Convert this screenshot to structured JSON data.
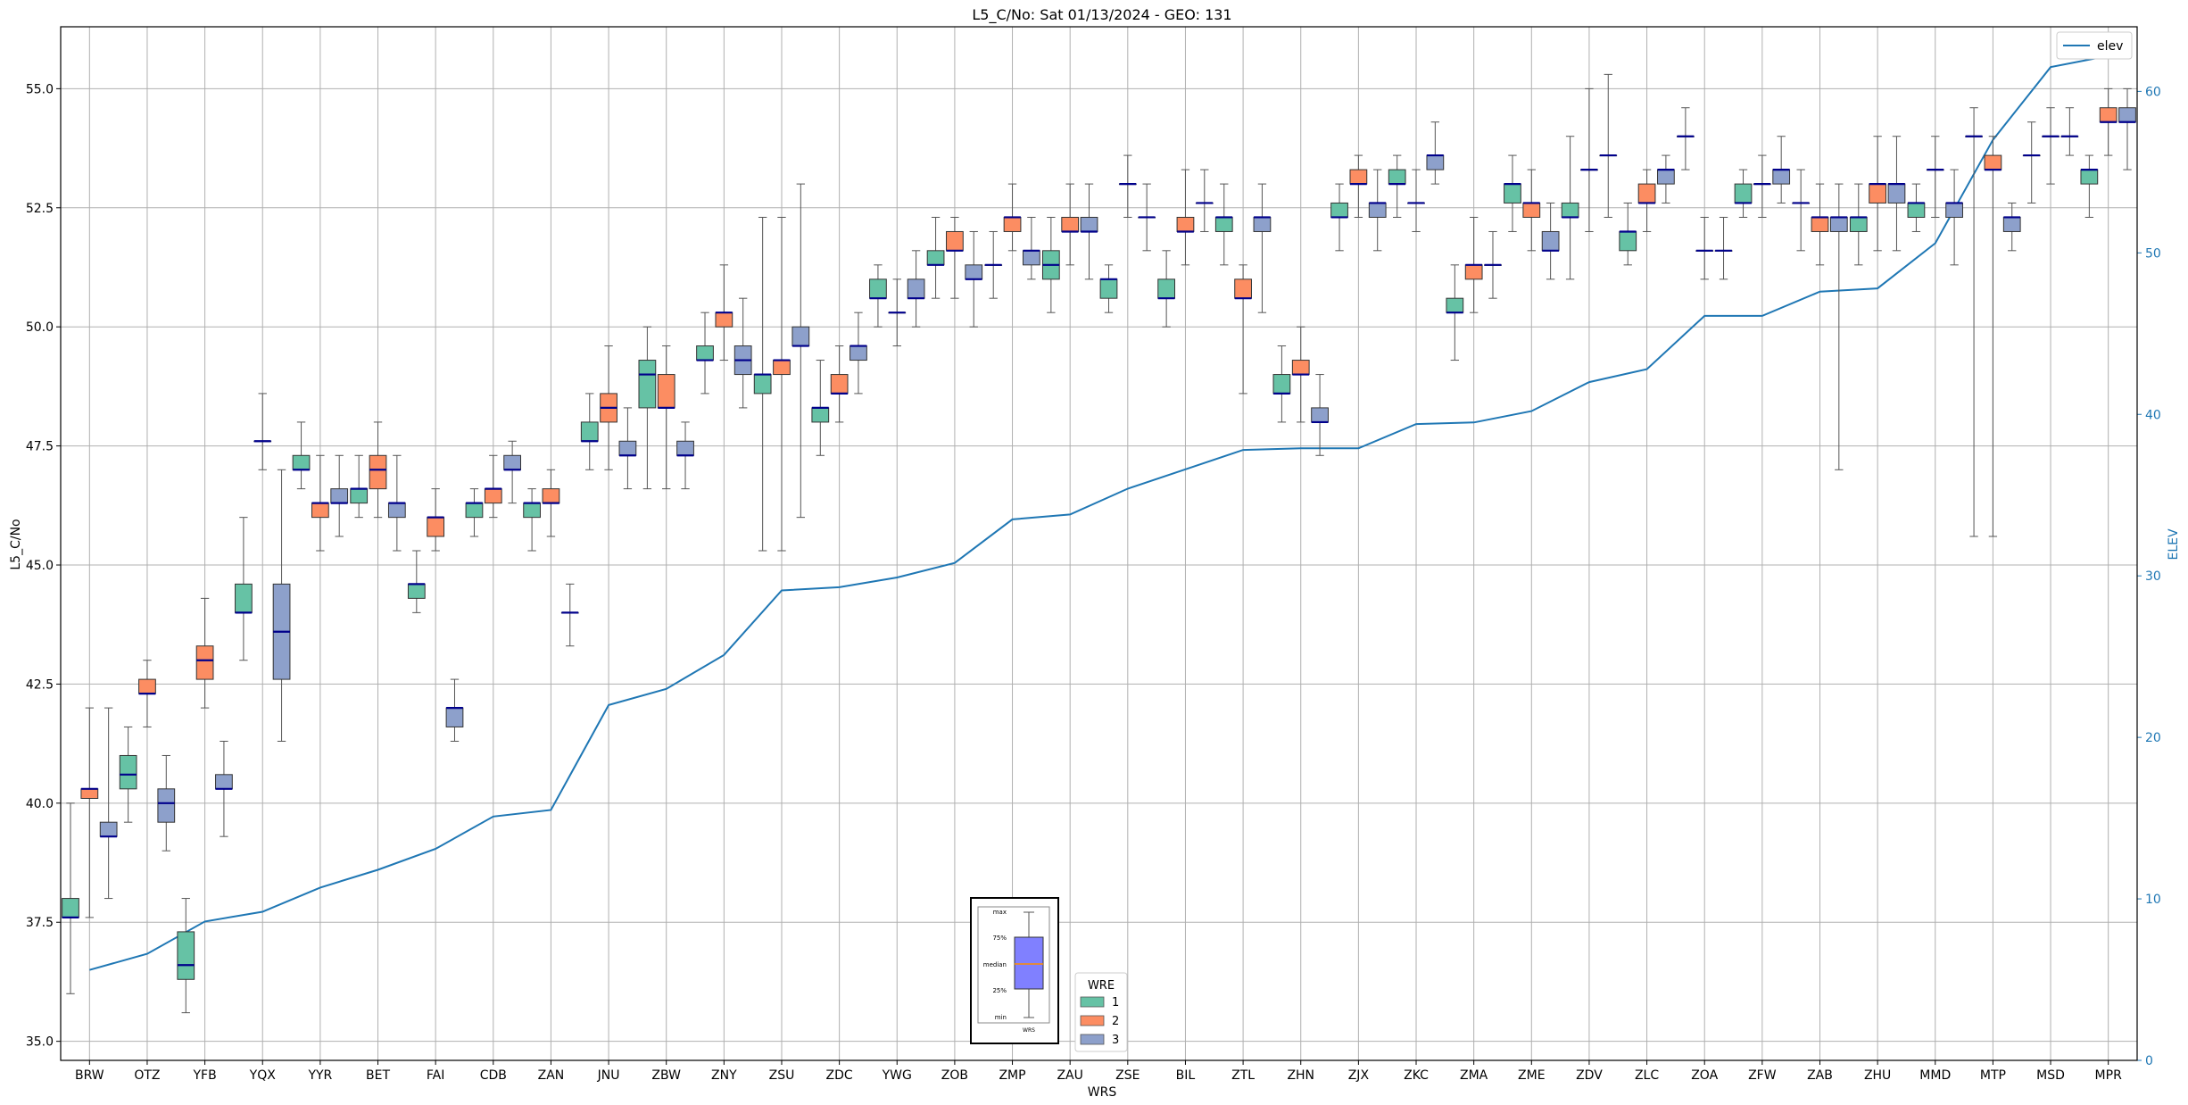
{
  "chart_data": {
    "type": "box",
    "title": "L5_C/No: Sat 01/13/2024 - GEO: 131",
    "xlabel": "WRS",
    "ylabel": "L5_C/No",
    "y2label": "ELEV",
    "ylim": [
      34.6,
      56.3
    ],
    "y2lim": [
      0,
      64
    ],
    "yticks": [
      "35.0",
      "37.5",
      "40.0",
      "42.5",
      "45.0",
      "47.5",
      "50.0",
      "52.5",
      "55.0"
    ],
    "y2ticks": [
      "0",
      "10",
      "20",
      "30",
      "40",
      "50",
      "60"
    ],
    "grid": true,
    "categories": [
      "BRW",
      "OTZ",
      "YFB",
      "YQX",
      "YYR",
      "BET",
      "FAI",
      "CDB",
      "ZAN",
      "JNU",
      "ZBW",
      "ZNY",
      "ZSU",
      "ZDC",
      "YWG",
      "ZOB",
      "ZMP",
      "ZAU",
      "ZSE",
      "BIL",
      "ZTL",
      "ZHN",
      "ZJX",
      "ZKC",
      "ZMA",
      "ZME",
      "ZDV",
      "ZLC",
      "ZOA",
      "ZFW",
      "ZAB",
      "ZHU",
      "MMD",
      "MTP",
      "MSD",
      "MPR"
    ],
    "series_colors": {
      "1": "#66c2a5",
      "2": "#fc8d62",
      "3": "#8da0cb"
    },
    "median_color": "#00008b",
    "boxes": [
      {
        "cat": "BRW",
        "wre": 1,
        "min": 36.0,
        "q1": 37.6,
        "med": 37.6,
        "q3": 38.0,
        "max": 40.0
      },
      {
        "cat": "BRW",
        "wre": 2,
        "min": 37.6,
        "q1": 40.1,
        "med": 40.3,
        "q3": 40.3,
        "max": 42.0
      },
      {
        "cat": "BRW",
        "wre": 3,
        "min": 38.0,
        "q1": 39.3,
        "med": 39.3,
        "q3": 39.6,
        "max": 42.0
      },
      {
        "cat": "OTZ",
        "wre": 1,
        "min": 39.6,
        "q1": 40.3,
        "med": 40.6,
        "q3": 41.0,
        "max": 41.6
      },
      {
        "cat": "OTZ",
        "wre": 2,
        "min": 41.6,
        "q1": 42.3,
        "med": 42.3,
        "q3": 42.6,
        "max": 43.0
      },
      {
        "cat": "OTZ",
        "wre": 3,
        "min": 39.0,
        "q1": 39.6,
        "med": 40.0,
        "q3": 40.3,
        "max": 41.0
      },
      {
        "cat": "YFB",
        "wre": 1,
        "min": 35.6,
        "q1": 36.3,
        "med": 36.6,
        "q3": 37.3,
        "max": 38.0
      },
      {
        "cat": "YFB",
        "wre": 2,
        "min": 42.0,
        "q1": 42.6,
        "med": 43.0,
        "q3": 43.3,
        "max": 44.3
      },
      {
        "cat": "YFB",
        "wre": 3,
        "min": 39.3,
        "q1": 40.3,
        "med": 40.3,
        "q3": 40.6,
        "max": 41.3
      },
      {
        "cat": "YQX",
        "wre": 1,
        "min": 43.0,
        "q1": 44.0,
        "med": 44.0,
        "q3": 44.6,
        "max": 46.0
      },
      {
        "cat": "YQX",
        "wre": 2,
        "min": 47.0,
        "q1": 47.6,
        "med": 47.6,
        "q3": 47.6,
        "max": 48.6
      },
      {
        "cat": "YQX",
        "wre": 3,
        "min": 41.3,
        "q1": 42.6,
        "med": 43.6,
        "q3": 44.6,
        "max": 47.0
      },
      {
        "cat": "YYR",
        "wre": 1,
        "min": 46.6,
        "q1": 47.0,
        "med": 47.0,
        "q3": 47.3,
        "max": 48.0
      },
      {
        "cat": "YYR",
        "wre": 2,
        "min": 45.3,
        "q1": 46.0,
        "med": 46.3,
        "q3": 46.3,
        "max": 47.3
      },
      {
        "cat": "YYR",
        "wre": 3,
        "min": 45.6,
        "q1": 46.3,
        "med": 46.3,
        "q3": 46.6,
        "max": 47.3
      },
      {
        "cat": "BET",
        "wre": 1,
        "min": 46.0,
        "q1": 46.3,
        "med": 46.6,
        "q3": 46.6,
        "max": 47.3
      },
      {
        "cat": "BET",
        "wre": 2,
        "min": 46.0,
        "q1": 46.6,
        "med": 47.0,
        "q3": 47.3,
        "max": 48.0
      },
      {
        "cat": "BET",
        "wre": 3,
        "min": 45.3,
        "q1": 46.0,
        "med": 46.3,
        "q3": 46.3,
        "max": 47.3
      },
      {
        "cat": "FAI",
        "wre": 1,
        "min": 44.0,
        "q1": 44.3,
        "med": 44.6,
        "q3": 44.6,
        "max": 45.3
      },
      {
        "cat": "FAI",
        "wre": 2,
        "min": 45.3,
        "q1": 45.6,
        "med": 46.0,
        "q3": 46.0,
        "max": 46.6
      },
      {
        "cat": "FAI",
        "wre": 3,
        "min": 41.3,
        "q1": 41.6,
        "med": 42.0,
        "q3": 42.0,
        "max": 42.6
      },
      {
        "cat": "CDB",
        "wre": 1,
        "min": 45.6,
        "q1": 46.0,
        "med": 46.3,
        "q3": 46.3,
        "max": 46.6
      },
      {
        "cat": "CDB",
        "wre": 2,
        "min": 46.0,
        "q1": 46.3,
        "med": 46.6,
        "q3": 46.6,
        "max": 47.3
      },
      {
        "cat": "CDB",
        "wre": 3,
        "min": 46.3,
        "q1": 47.0,
        "med": 47.0,
        "q3": 47.3,
        "max": 47.6
      },
      {
        "cat": "ZAN",
        "wre": 1,
        "min": 45.3,
        "q1": 46.0,
        "med": 46.3,
        "q3": 46.3,
        "max": 46.6
      },
      {
        "cat": "ZAN",
        "wre": 2,
        "min": 45.6,
        "q1": 46.3,
        "med": 46.3,
        "q3": 46.6,
        "max": 47.0
      },
      {
        "cat": "ZAN",
        "wre": 3,
        "min": 43.3,
        "q1": 44.0,
        "med": 44.0,
        "q3": 44.0,
        "max": 44.6
      },
      {
        "cat": "JNU",
        "wre": 1,
        "min": 47.0,
        "q1": 47.6,
        "med": 47.6,
        "q3": 48.0,
        "max": 48.6
      },
      {
        "cat": "JNU",
        "wre": 2,
        "min": 47.0,
        "q1": 48.0,
        "med": 48.3,
        "q3": 48.6,
        "max": 49.6
      },
      {
        "cat": "JNU",
        "wre": 3,
        "min": 46.6,
        "q1": 47.3,
        "med": 47.3,
        "q3": 47.6,
        "max": 48.3
      },
      {
        "cat": "ZBW",
        "wre": 1,
        "min": 46.6,
        "q1": 48.3,
        "med": 49.0,
        "q3": 49.3,
        "max": 50.0
      },
      {
        "cat": "ZBW",
        "wre": 2,
        "min": 46.6,
        "q1": 48.3,
        "med": 48.3,
        "q3": 49.0,
        "max": 49.6
      },
      {
        "cat": "ZBW",
        "wre": 3,
        "min": 46.6,
        "q1": 47.3,
        "med": 47.3,
        "q3": 47.6,
        "max": 48.0
      },
      {
        "cat": "ZNY",
        "wre": 1,
        "min": 48.6,
        "q1": 49.3,
        "med": 49.3,
        "q3": 49.6,
        "max": 50.3
      },
      {
        "cat": "ZNY",
        "wre": 2,
        "min": 49.3,
        "q1": 50.0,
        "med": 50.3,
        "q3": 50.3,
        "max": 51.3
      },
      {
        "cat": "ZNY",
        "wre": 3,
        "min": 48.3,
        "q1": 49.0,
        "med": 49.3,
        "q3": 49.6,
        "max": 50.6
      },
      {
        "cat": "ZSU",
        "wre": 1,
        "min": 45.3,
        "q1": 48.6,
        "med": 49.0,
        "q3": 49.0,
        "max": 52.3
      },
      {
        "cat": "ZSU",
        "wre": 2,
        "min": 45.3,
        "q1": 49.0,
        "med": 49.3,
        "q3": 49.3,
        "max": 52.3
      },
      {
        "cat": "ZSU",
        "wre": 3,
        "min": 46.0,
        "q1": 49.6,
        "med": 49.6,
        "q3": 50.0,
        "max": 53.0
      },
      {
        "cat": "ZDC",
        "wre": 1,
        "min": 47.3,
        "q1": 48.0,
        "med": 48.3,
        "q3": 48.3,
        "max": 49.3
      },
      {
        "cat": "ZDC",
        "wre": 2,
        "min": 48.0,
        "q1": 48.6,
        "med": 48.6,
        "q3": 49.0,
        "max": 49.6
      },
      {
        "cat": "ZDC",
        "wre": 3,
        "min": 48.6,
        "q1": 49.3,
        "med": 49.6,
        "q3": 49.6,
        "max": 50.3
      },
      {
        "cat": "YWG",
        "wre": 1,
        "min": 50.0,
        "q1": 50.6,
        "med": 50.6,
        "q3": 51.0,
        "max": 51.3
      },
      {
        "cat": "YWG",
        "wre": 2,
        "min": 49.6,
        "q1": 50.3,
        "med": 50.3,
        "q3": 50.3,
        "max": 51.0
      },
      {
        "cat": "YWG",
        "wre": 3,
        "min": 50.0,
        "q1": 50.6,
        "med": 50.6,
        "q3": 51.0,
        "max": 51.6
      },
      {
        "cat": "ZOB",
        "wre": 1,
        "min": 50.6,
        "q1": 51.3,
        "med": 51.3,
        "q3": 51.6,
        "max": 52.3
      },
      {
        "cat": "ZOB",
        "wre": 2,
        "min": 50.6,
        "q1": 51.6,
        "med": 51.6,
        "q3": 52.0,
        "max": 52.3
      },
      {
        "cat": "ZOB",
        "wre": 3,
        "min": 50.0,
        "q1": 51.0,
        "med": 51.0,
        "q3": 51.3,
        "max": 52.0
      },
      {
        "cat": "ZMP",
        "wre": 1,
        "min": 50.6,
        "q1": 51.3,
        "med": 51.3,
        "q3": 51.3,
        "max": 52.0
      },
      {
        "cat": "ZMP",
        "wre": 2,
        "min": 51.6,
        "q1": 52.0,
        "med": 52.3,
        "q3": 52.3,
        "max": 53.0
      },
      {
        "cat": "ZMP",
        "wre": 3,
        "min": 51.0,
        "q1": 51.3,
        "med": 51.6,
        "q3": 51.6,
        "max": 52.3
      },
      {
        "cat": "ZAU",
        "wre": 1,
        "min": 50.3,
        "q1": 51.0,
        "med": 51.3,
        "q3": 51.6,
        "max": 52.3
      },
      {
        "cat": "ZAU",
        "wre": 2,
        "min": 51.3,
        "q1": 52.0,
        "med": 52.0,
        "q3": 52.3,
        "max": 53.0
      },
      {
        "cat": "ZAU",
        "wre": 3,
        "min": 51.0,
        "q1": 52.0,
        "med": 52.0,
        "q3": 52.3,
        "max": 53.0
      },
      {
        "cat": "ZSE",
        "wre": 1,
        "min": 50.3,
        "q1": 50.6,
        "med": 51.0,
        "q3": 51.0,
        "max": 51.3
      },
      {
        "cat": "ZSE",
        "wre": 2,
        "min": 52.3,
        "q1": 53.0,
        "med": 53.0,
        "q3": 53.0,
        "max": 53.6
      },
      {
        "cat": "ZSE",
        "wre": 3,
        "min": 51.6,
        "q1": 52.3,
        "med": 52.3,
        "q3": 52.3,
        "max": 53.0
      },
      {
        "cat": "BIL",
        "wre": 1,
        "min": 50.0,
        "q1": 50.6,
        "med": 50.6,
        "q3": 51.0,
        "max": 51.6
      },
      {
        "cat": "BIL",
        "wre": 2,
        "min": 51.3,
        "q1": 52.0,
        "med": 52.0,
        "q3": 52.3,
        "max": 53.3
      },
      {
        "cat": "BIL",
        "wre": 3,
        "min": 52.0,
        "q1": 52.6,
        "med": 52.6,
        "q3": 52.6,
        "max": 53.3
      },
      {
        "cat": "ZTL",
        "wre": 1,
        "min": 51.3,
        "q1": 52.0,
        "med": 52.3,
        "q3": 52.3,
        "max": 53.0
      },
      {
        "cat": "ZTL",
        "wre": 2,
        "min": 48.6,
        "q1": 50.6,
        "med": 50.6,
        "q3": 51.0,
        "max": 51.3
      },
      {
        "cat": "ZTL",
        "wre": 3,
        "min": 50.3,
        "q1": 52.0,
        "med": 52.3,
        "q3": 52.3,
        "max": 53.0
      },
      {
        "cat": "ZHN",
        "wre": 1,
        "min": 48.0,
        "q1": 48.6,
        "med": 48.6,
        "q3": 49.0,
        "max": 49.6
      },
      {
        "cat": "ZHN",
        "wre": 2,
        "min": 48.0,
        "q1": 49.0,
        "med": 49.0,
        "q3": 49.3,
        "max": 50.0
      },
      {
        "cat": "ZHN",
        "wre": 3,
        "min": 47.3,
        "q1": 48.0,
        "med": 48.0,
        "q3": 48.3,
        "max": 49.0
      },
      {
        "cat": "ZJX",
        "wre": 1,
        "min": 51.6,
        "q1": 52.3,
        "med": 52.3,
        "q3": 52.6,
        "max": 53.0
      },
      {
        "cat": "ZJX",
        "wre": 2,
        "min": 52.3,
        "q1": 53.0,
        "med": 53.0,
        "q3": 53.3,
        "max": 53.6
      },
      {
        "cat": "ZJX",
        "wre": 3,
        "min": 51.6,
        "q1": 52.3,
        "med": 52.6,
        "q3": 52.6,
        "max": 53.3
      },
      {
        "cat": "ZKC",
        "wre": 1,
        "min": 52.3,
        "q1": 53.0,
        "med": 53.0,
        "q3": 53.3,
        "max": 53.6
      },
      {
        "cat": "ZKC",
        "wre": 2,
        "min": 52.0,
        "q1": 52.6,
        "med": 52.6,
        "q3": 52.6,
        "max": 53.3
      },
      {
        "cat": "ZKC",
        "wre": 3,
        "min": 53.0,
        "q1": 53.3,
        "med": 53.6,
        "q3": 53.6,
        "max": 54.3
      },
      {
        "cat": "ZMA",
        "wre": 1,
        "min": 49.3,
        "q1": 50.3,
        "med": 50.3,
        "q3": 50.6,
        "max": 51.3
      },
      {
        "cat": "ZMA",
        "wre": 2,
        "min": 50.3,
        "q1": 51.0,
        "med": 51.3,
        "q3": 51.3,
        "max": 52.3
      },
      {
        "cat": "ZMA",
        "wre": 3,
        "min": 50.6,
        "q1": 51.3,
        "med": 51.3,
        "q3": 51.3,
        "max": 52.0
      },
      {
        "cat": "ZME",
        "wre": 1,
        "min": 52.0,
        "q1": 52.6,
        "med": 53.0,
        "q3": 53.0,
        "max": 53.6
      },
      {
        "cat": "ZME",
        "wre": 2,
        "min": 51.6,
        "q1": 52.3,
        "med": 52.6,
        "q3": 52.6,
        "max": 53.3
      },
      {
        "cat": "ZME",
        "wre": 3,
        "min": 51.0,
        "q1": 51.6,
        "med": 51.6,
        "q3": 52.0,
        "max": 52.6
      },
      {
        "cat": "ZDV",
        "wre": 1,
        "min": 51.0,
        "q1": 52.3,
        "med": 52.3,
        "q3": 52.6,
        "max": 54.0
      },
      {
        "cat": "ZDV",
        "wre": 2,
        "min": 52.0,
        "q1": 53.3,
        "med": 53.3,
        "q3": 53.3,
        "max": 55.0
      },
      {
        "cat": "ZDV",
        "wre": 3,
        "min": 52.3,
        "q1": 53.6,
        "med": 53.6,
        "q3": 53.6,
        "max": 55.3
      },
      {
        "cat": "ZLC",
        "wre": 1,
        "min": 51.3,
        "q1": 51.6,
        "med": 52.0,
        "q3": 52.0,
        "max": 52.6
      },
      {
        "cat": "ZLC",
        "wre": 2,
        "min": 52.0,
        "q1": 52.6,
        "med": 52.6,
        "q3": 53.0,
        "max": 53.3
      },
      {
        "cat": "ZLC",
        "wre": 3,
        "min": 52.6,
        "q1": 53.0,
        "med": 53.3,
        "q3": 53.3,
        "max": 53.6
      },
      {
        "cat": "ZOA",
        "wre": 1,
        "min": 53.3,
        "q1": 54.0,
        "med": 54.0,
        "q3": 54.0,
        "max": 54.6
      },
      {
        "cat": "ZOA",
        "wre": 2,
        "min": 51.0,
        "q1": 51.6,
        "med": 51.6,
        "q3": 51.6,
        "max": 52.3
      },
      {
        "cat": "ZOA",
        "wre": 3,
        "min": 51.0,
        "q1": 51.6,
        "med": 51.6,
        "q3": 51.6,
        "max": 52.3
      },
      {
        "cat": "ZFW",
        "wre": 1,
        "min": 52.3,
        "q1": 52.6,
        "med": 52.6,
        "q3": 53.0,
        "max": 53.3
      },
      {
        "cat": "ZFW",
        "wre": 2,
        "min": 52.3,
        "q1": 53.0,
        "med": 53.0,
        "q3": 53.0,
        "max": 53.6
      },
      {
        "cat": "ZFW",
        "wre": 3,
        "min": 52.6,
        "q1": 53.0,
        "med": 53.3,
        "q3": 53.3,
        "max": 54.0
      },
      {
        "cat": "ZAB",
        "wre": 1,
        "min": 51.6,
        "q1": 52.6,
        "med": 52.6,
        "q3": 52.6,
        "max": 53.3
      },
      {
        "cat": "ZAB",
        "wre": 2,
        "min": 51.3,
        "q1": 52.0,
        "med": 52.3,
        "q3": 52.3,
        "max": 53.0
      },
      {
        "cat": "ZAB",
        "wre": 3,
        "min": 47.0,
        "q1": 52.0,
        "med": 52.3,
        "q3": 52.3,
        "max": 53.0
      },
      {
        "cat": "ZHU",
        "wre": 1,
        "min": 51.3,
        "q1": 52.0,
        "med": 52.3,
        "q3": 52.3,
        "max": 53.0
      },
      {
        "cat": "ZHU",
        "wre": 2,
        "min": 51.6,
        "q1": 52.6,
        "med": 53.0,
        "q3": 53.0,
        "max": 54.0
      },
      {
        "cat": "ZHU",
        "wre": 3,
        "min": 51.6,
        "q1": 52.6,
        "med": 53.0,
        "q3": 53.0,
        "max": 54.0
      },
      {
        "cat": "MMD",
        "wre": 1,
        "min": 52.0,
        "q1": 52.3,
        "med": 52.6,
        "q3": 52.6,
        "max": 53.0
      },
      {
        "cat": "MMD",
        "wre": 2,
        "min": 52.3,
        "q1": 53.3,
        "med": 53.3,
        "q3": 53.3,
        "max": 54.0
      },
      {
        "cat": "MMD",
        "wre": 3,
        "min": 51.3,
        "q1": 52.3,
        "med": 52.6,
        "q3": 52.6,
        "max": 53.3
      },
      {
        "cat": "MTP",
        "wre": 1,
        "min": 45.6,
        "q1": 54.0,
        "med": 54.0,
        "q3": 54.0,
        "max": 54.6
      },
      {
        "cat": "MTP",
        "wre": 2,
        "min": 45.6,
        "q1": 53.3,
        "med": 53.3,
        "q3": 53.6,
        "max": 54.0
      },
      {
        "cat": "MTP",
        "wre": 3,
        "min": 51.6,
        "q1": 52.0,
        "med": 52.3,
        "q3": 52.3,
        "max": 52.6
      },
      {
        "cat": "MSD",
        "wre": 1,
        "min": 52.6,
        "q1": 53.6,
        "med": 53.6,
        "q3": 53.6,
        "max": 54.3
      },
      {
        "cat": "MSD",
        "wre": 2,
        "min": 53.0,
        "q1": 54.0,
        "med": 54.0,
        "q3": 54.0,
        "max": 54.6
      },
      {
        "cat": "MSD",
        "wre": 3,
        "min": 53.6,
        "q1": 54.0,
        "med": 54.0,
        "q3": 54.0,
        "max": 54.6
      },
      {
        "cat": "MPR",
        "wre": 1,
        "min": 52.3,
        "q1": 53.0,
        "med": 53.3,
        "q3": 53.3,
        "max": 53.6
      },
      {
        "cat": "MPR",
        "wre": 2,
        "min": 53.6,
        "q1": 54.3,
        "med": 54.3,
        "q3": 54.6,
        "max": 55.0
      },
      {
        "cat": "MPR",
        "wre": 3,
        "min": 53.3,
        "q1": 54.3,
        "med": 54.3,
        "q3": 54.6,
        "max": 55.0
      }
    ],
    "elev_series": {
      "name": "elev",
      "color": "#1f77b4",
      "values": [
        5.6,
        6.6,
        8.6,
        9.2,
        10.7,
        11.8,
        13.1,
        15.1,
        15.5,
        22.0,
        23.0,
        25.1,
        29.1,
        29.3,
        29.9,
        30.8,
        33.5,
        33.8,
        35.4,
        36.6,
        37.8,
        37.9,
        37.9,
        39.4,
        39.5,
        40.2,
        42.0,
        42.8,
        46.1,
        46.1,
        47.6,
        47.8,
        50.6,
        57.0,
        61.5,
        62.2
      ]
    },
    "legend_wre": {
      "title": "WRE",
      "entries": [
        "1",
        "2",
        "3"
      ],
      "placement": "bottom-center"
    },
    "legend_elev": {
      "entries": [
        "elev"
      ],
      "placement": "top-right"
    },
    "inset_key": {
      "labels": [
        "max",
        "75%",
        "median",
        "25%",
        "min"
      ],
      "xlabel": "WRS",
      "values": {
        "min": 5,
        "q1": 25,
        "med": 50,
        "q3": 75,
        "max": 100
      },
      "box_color": "#8080ff",
      "median_color": "#ff8c00"
    }
  }
}
